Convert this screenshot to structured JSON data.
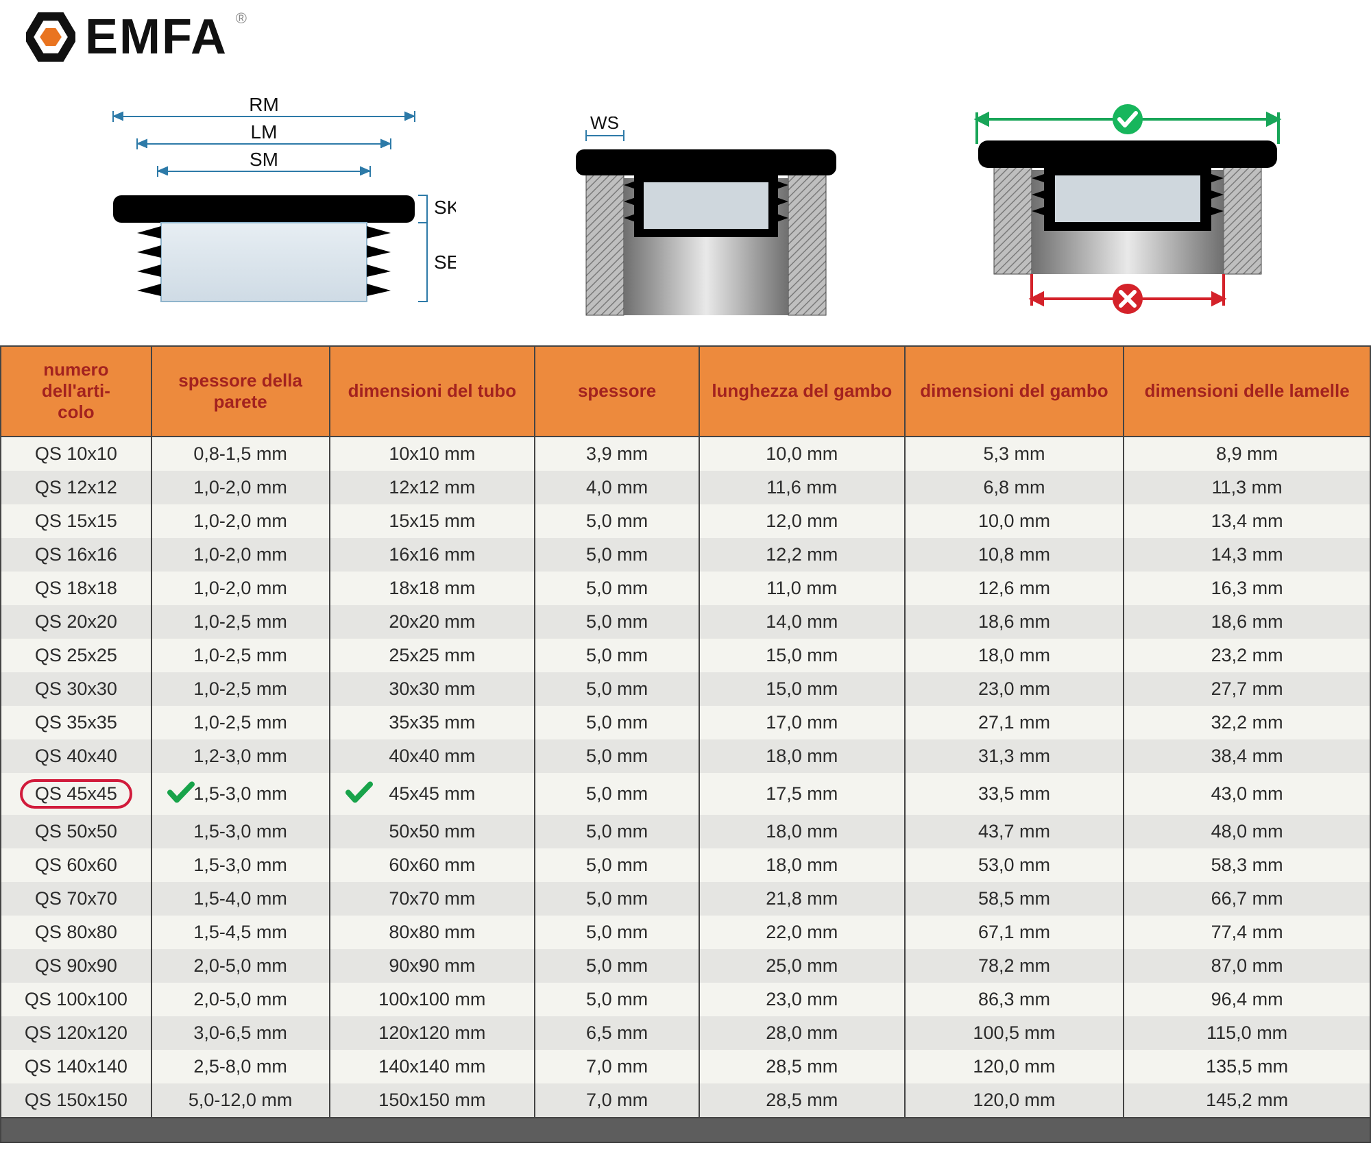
{
  "brand": {
    "name": "EMFA",
    "accent": "#e97420"
  },
  "diagram_labels": {
    "rm": "RM",
    "lm": "LM",
    "sm": "SM",
    "sk": "SK",
    "se": "SE",
    "ws": "WS"
  },
  "table": {
    "header_bg": "#ed8a3d",
    "header_fg": "#a3221f",
    "row_odd_bg": "#f4f4ef",
    "row_even_bg": "#e5e5e2",
    "border_color": "#444444",
    "highlight_row_index": 10,
    "highlight_check_cols": [
      1,
      2
    ],
    "columns": [
      "numero dell'articolo",
      "spessore della parete",
      "dimensioni del tubo",
      "spessore",
      "lunghezza del gambo",
      "dimensioni del gambo",
      "dimensioni delle lamelle"
    ],
    "rows": [
      [
        "QS 10x10",
        "0,8-1,5 mm",
        "10x10 mm",
        "3,9 mm",
        "10,0 mm",
        "5,3 mm",
        "8,9 mm"
      ],
      [
        "QS 12x12",
        "1,0-2,0 mm",
        "12x12 mm",
        "4,0 mm",
        "11,6 mm",
        "6,8 mm",
        "11,3 mm"
      ],
      [
        "QS 15x15",
        "1,0-2,0 mm",
        "15x15 mm",
        "5,0 mm",
        "12,0 mm",
        "10,0 mm",
        "13,4 mm"
      ],
      [
        "QS 16x16",
        "1,0-2,0 mm",
        "16x16 mm",
        "5,0 mm",
        "12,2 mm",
        "10,8 mm",
        "14,3 mm"
      ],
      [
        "QS 18x18",
        "1,0-2,0 mm",
        "18x18 mm",
        "5,0 mm",
        "11,0 mm",
        "12,6 mm",
        "16,3 mm"
      ],
      [
        "QS 20x20",
        "1,0-2,5 mm",
        "20x20 mm",
        "5,0 mm",
        "14,0 mm",
        "18,6 mm",
        "18,6 mm"
      ],
      [
        "QS 25x25",
        "1,0-2,5 mm",
        "25x25 mm",
        "5,0 mm",
        "15,0 mm",
        "18,0 mm",
        "23,2 mm"
      ],
      [
        "QS 30x30",
        "1,0-2,5 mm",
        "30x30 mm",
        "5,0 mm",
        "15,0 mm",
        "23,0 mm",
        "27,7 mm"
      ],
      [
        "QS 35x35",
        "1,0-2,5 mm",
        "35x35 mm",
        "5,0 mm",
        "17,0 mm",
        "27,1 mm",
        "32,2 mm"
      ],
      [
        "QS 40x40",
        "1,2-3,0 mm",
        "40x40 mm",
        "5,0 mm",
        "18,0 mm",
        "31,3 mm",
        "38,4 mm"
      ],
      [
        "QS 45x45",
        "1,5-3,0 mm",
        "45x45 mm",
        "5,0 mm",
        "17,5 mm",
        "33,5 mm",
        "43,0 mm"
      ],
      [
        "QS 50x50",
        "1,5-3,0 mm",
        "50x50 mm",
        "5,0 mm",
        "18,0 mm",
        "43,7 mm",
        "48,0 mm"
      ],
      [
        "QS 60x60",
        "1,5-3,0 mm",
        "60x60 mm",
        "5,0 mm",
        "18,0 mm",
        "53,0 mm",
        "58,3 mm"
      ],
      [
        "QS 70x70",
        "1,5-4,0 mm",
        "70x70 mm",
        "5,0 mm",
        "21,8 mm",
        "58,5 mm",
        "66,7 mm"
      ],
      [
        "QS 80x80",
        "1,5-4,5 mm",
        "80x80 mm",
        "5,0 mm",
        "22,0 mm",
        "67,1 mm",
        "77,4 mm"
      ],
      [
        "QS 90x90",
        "2,0-5,0 mm",
        "90x90 mm",
        "5,0 mm",
        "25,0 mm",
        "78,2 mm",
        "87,0 mm"
      ],
      [
        "QS 100x100",
        "2,0-5,0 mm",
        "100x100 mm",
        "5,0 mm",
        "23,0 mm",
        "86,3 mm",
        "96,4 mm"
      ],
      [
        "QS 120x120",
        "3,0-6,5 mm",
        "120x120 mm",
        "6,5 mm",
        "28,0 mm",
        "100,5 mm",
        "115,0 mm"
      ],
      [
        "QS 140x140",
        "2,5-8,0 mm",
        "140x140 mm",
        "7,0 mm",
        "28,5 mm",
        "120,0 mm",
        "135,5 mm"
      ],
      [
        "QS 150x150",
        "5,0-12,0 mm",
        "150x150 mm",
        "7,0 mm",
        "28,5 mm",
        "120,0 mm",
        "145,2 mm"
      ]
    ]
  }
}
